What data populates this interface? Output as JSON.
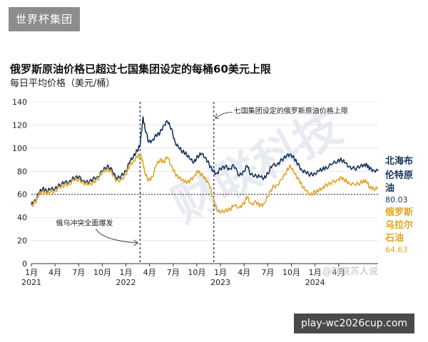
{
  "header": {
    "tag": "世界杯集团"
  },
  "footer": {
    "tag": "play-wc2026cup.com"
  },
  "watermarks": {
    "main": "财联科技",
    "bottom": "@财联苏人说"
  },
  "colors": {
    "brent": "#17365d",
    "russian": "#e0a52b",
    "axis": "#333333",
    "grid": "#d9d9d9"
  },
  "chart_data": {
    "type": "line",
    "title": "俄罗斯原油价格已超过七国集团设定的每桶60美元上限",
    "subtitle": "每日平均价格（美元/桶）",
    "ylim": [
      0,
      140
    ],
    "yticks": [
      0,
      20,
      40,
      60,
      80,
      100,
      120,
      140
    ],
    "xlim": [
      2021.0,
      2024.667
    ],
    "xticks": [
      {
        "pos": 2021.0,
        "label": "1月",
        "year": "2021"
      },
      {
        "pos": 2021.25,
        "label": "4月",
        "year": ""
      },
      {
        "pos": 2021.5,
        "label": "7月",
        "year": ""
      },
      {
        "pos": 2021.75,
        "label": "10月",
        "year": ""
      },
      {
        "pos": 2022.0,
        "label": "1月",
        "year": "2022"
      },
      {
        "pos": 2022.25,
        "label": "4月",
        "year": ""
      },
      {
        "pos": 2022.5,
        "label": "7月",
        "year": ""
      },
      {
        "pos": 2022.75,
        "label": "10月",
        "year": ""
      },
      {
        "pos": 2023.0,
        "label": "1月",
        "year": "2023"
      },
      {
        "pos": 2023.25,
        "label": "4月",
        "year": ""
      },
      {
        "pos": 2023.5,
        "label": "7月",
        "year": ""
      },
      {
        "pos": 2023.75,
        "label": "10月",
        "year": ""
      },
      {
        "pos": 2024.0,
        "label": "1月",
        "year": "2024"
      },
      {
        "pos": 2024.25,
        "label": "4月",
        "year": ""
      }
    ],
    "reference_lines": [
      {
        "type": "horizontal",
        "y": 60
      },
      {
        "type": "vertical",
        "x": 2022.15,
        "label": "俄乌冲突全面爆发"
      },
      {
        "type": "vertical",
        "x": 2022.93,
        "label": "七国集团设定的俄罗斯原油价格上限"
      }
    ],
    "series": [
      {
        "name": "北海布伦特原油",
        "end_value": "80.03",
        "points": [
          [
            2021.0,
            51
          ],
          [
            2021.04,
            55
          ],
          [
            2021.08,
            61
          ],
          [
            2021.12,
            65
          ],
          [
            2021.16,
            63
          ],
          [
            2021.2,
            64
          ],
          [
            2021.25,
            65
          ],
          [
            2021.3,
            68
          ],
          [
            2021.35,
            70
          ],
          [
            2021.4,
            71
          ],
          [
            2021.45,
            74
          ],
          [
            2021.5,
            75
          ],
          [
            2021.55,
            72
          ],
          [
            2021.6,
            70
          ],
          [
            2021.65,
            73
          ],
          [
            2021.7,
            75
          ],
          [
            2021.75,
            80
          ],
          [
            2021.8,
            84
          ],
          [
            2021.85,
            82
          ],
          [
            2021.9,
            73
          ],
          [
            2021.95,
            76
          ],
          [
            2022.0,
            80
          ],
          [
            2022.04,
            88
          ],
          [
            2022.08,
            93
          ],
          [
            2022.12,
            98
          ],
          [
            2022.15,
            102
          ],
          [
            2022.18,
            127
          ],
          [
            2022.2,
            118
          ],
          [
            2022.24,
            105
          ],
          [
            2022.28,
            107
          ],
          [
            2022.32,
            111
          ],
          [
            2022.36,
            113
          ],
          [
            2022.4,
            120
          ],
          [
            2022.44,
            123
          ],
          [
            2022.48,
            117
          ],
          [
            2022.52,
            105
          ],
          [
            2022.56,
            100
          ],
          [
            2022.6,
            97
          ],
          [
            2022.64,
            95
          ],
          [
            2022.68,
            90
          ],
          [
            2022.72,
            88
          ],
          [
            2022.76,
            93
          ],
          [
            2022.8,
            95
          ],
          [
            2022.84,
            92
          ],
          [
            2022.88,
            86
          ],
          [
            2022.92,
            80
          ],
          [
            2022.96,
            78
          ],
          [
            2023.0,
            82
          ],
          [
            2023.05,
            84
          ],
          [
            2023.1,
            82
          ],
          [
            2023.14,
            85
          ],
          [
            2023.2,
            76
          ],
          [
            2023.25,
            80
          ],
          [
            2023.28,
            85
          ],
          [
            2023.32,
            77
          ],
          [
            2023.38,
            76
          ],
          [
            2023.42,
            75
          ],
          [
            2023.46,
            74
          ],
          [
            2023.5,
            78
          ],
          [
            2023.55,
            85
          ],
          [
            2023.6,
            86
          ],
          [
            2023.65,
            90
          ],
          [
            2023.7,
            93
          ],
          [
            2023.74,
            95
          ],
          [
            2023.78,
            91
          ],
          [
            2023.82,
            86
          ],
          [
            2023.86,
            81
          ],
          [
            2023.9,
            79
          ],
          [
            2023.95,
            77
          ],
          [
            2024.0,
            78
          ],
          [
            2024.04,
            80
          ],
          [
            2024.08,
            82
          ],
          [
            2024.12,
            83
          ],
          [
            2024.18,
            86
          ],
          [
            2024.24,
            89
          ],
          [
            2024.28,
            90
          ],
          [
            2024.32,
            87
          ],
          [
            2024.36,
            84
          ],
          [
            2024.42,
            82
          ],
          [
            2024.48,
            84
          ],
          [
            2024.52,
            86
          ],
          [
            2024.55,
            85
          ],
          [
            2024.58,
            82
          ],
          [
            2024.62,
            81
          ],
          [
            2024.667,
            80.03
          ]
        ]
      },
      {
        "name": "俄罗斯乌拉尔石油",
        "end_value": "64.63",
        "points": [
          [
            2021.0,
            50
          ],
          [
            2021.04,
            53
          ],
          [
            2021.08,
            59
          ],
          [
            2021.12,
            63
          ],
          [
            2021.16,
            61
          ],
          [
            2021.2,
            62
          ],
          [
            2021.25,
            63
          ],
          [
            2021.3,
            66
          ],
          [
            2021.35,
            68
          ],
          [
            2021.4,
            69
          ],
          [
            2021.45,
            72
          ],
          [
            2021.5,
            73
          ],
          [
            2021.55,
            70
          ],
          [
            2021.6,
            68
          ],
          [
            2021.65,
            70
          ],
          [
            2021.7,
            73
          ],
          [
            2021.75,
            78
          ],
          [
            2021.8,
            82
          ],
          [
            2021.85,
            79
          ],
          [
            2021.9,
            71
          ],
          [
            2021.95,
            73
          ],
          [
            2022.0,
            77
          ],
          [
            2022.04,
            85
          ],
          [
            2022.08,
            89
          ],
          [
            2022.12,
            92
          ],
          [
            2022.15,
            95
          ],
          [
            2022.18,
            88
          ],
          [
            2022.2,
            78
          ],
          [
            2022.24,
            72
          ],
          [
            2022.28,
            75
          ],
          [
            2022.32,
            85
          ],
          [
            2022.36,
            90
          ],
          [
            2022.4,
            88
          ],
          [
            2022.44,
            92
          ],
          [
            2022.48,
            85
          ],
          [
            2022.52,
            78
          ],
          [
            2022.56,
            74
          ],
          [
            2022.6,
            73
          ],
          [
            2022.64,
            70
          ],
          [
            2022.68,
            72
          ],
          [
            2022.72,
            76
          ],
          [
            2022.76,
            80
          ],
          [
            2022.8,
            77
          ],
          [
            2022.84,
            74
          ],
          [
            2022.88,
            68
          ],
          [
            2022.92,
            58
          ],
          [
            2022.96,
            47
          ],
          [
            2023.0,
            44
          ],
          [
            2023.05,
            46
          ],
          [
            2023.1,
            47
          ],
          [
            2023.14,
            50
          ],
          [
            2023.2,
            49
          ],
          [
            2023.25,
            52
          ],
          [
            2023.28,
            58
          ],
          [
            2023.32,
            52
          ],
          [
            2023.38,
            53
          ],
          [
            2023.42,
            50
          ],
          [
            2023.46,
            52
          ],
          [
            2023.5,
            58
          ],
          [
            2023.55,
            66
          ],
          [
            2023.6,
            68
          ],
          [
            2023.65,
            73
          ],
          [
            2023.7,
            80
          ],
          [
            2023.74,
            85
          ],
          [
            2023.78,
            78
          ],
          [
            2023.82,
            74
          ],
          [
            2023.86,
            68
          ],
          [
            2023.9,
            63
          ],
          [
            2023.95,
            60
          ],
          [
            2024.0,
            62
          ],
          [
            2024.04,
            63
          ],
          [
            2024.08,
            66
          ],
          [
            2024.12,
            68
          ],
          [
            2024.18,
            70
          ],
          [
            2024.24,
            73
          ],
          [
            2024.28,
            74
          ],
          [
            2024.32,
            72
          ],
          [
            2024.36,
            70
          ],
          [
            2024.42,
            68
          ],
          [
            2024.48,
            70
          ],
          [
            2024.52,
            72
          ],
          [
            2024.55,
            70
          ],
          [
            2024.58,
            66
          ],
          [
            2024.62,
            65
          ],
          [
            2024.667,
            64.63
          ]
        ]
      }
    ]
  }
}
